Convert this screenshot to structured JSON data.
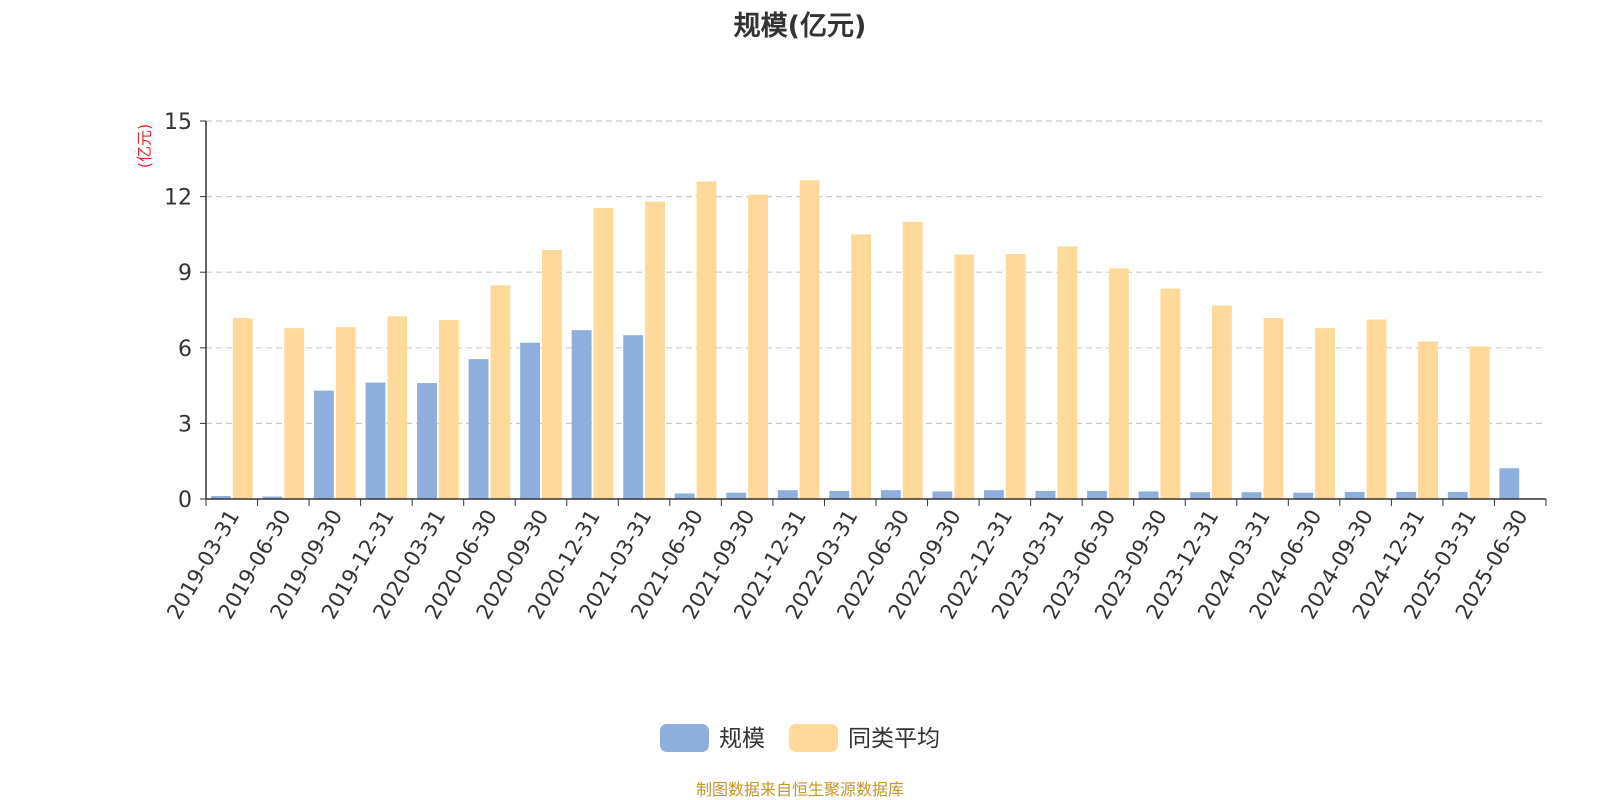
{
  "chart_data": {
    "type": "bar",
    "title": "规模(亿元)",
    "ylabel": "(亿元)",
    "ylim": [
      0,
      15
    ],
    "yticks": [
      "0",
      "3",
      "6",
      "9",
      "12",
      "15"
    ],
    "grid": true,
    "legend_position": "bottom",
    "categories": [
      "2019-03-31",
      "2019-06-30",
      "2019-09-30",
      "2019-12-31",
      "2020-03-31",
      "2020-06-30",
      "2020-09-30",
      "2020-12-31",
      "2021-03-31",
      "2021-06-30",
      "2021-09-30",
      "2021-12-31",
      "2022-03-31",
      "2022-06-30",
      "2022-09-30",
      "2022-12-31",
      "2023-03-31",
      "2023-06-30",
      "2023-09-30",
      "2023-12-31",
      "2024-03-31",
      "2024-06-30",
      "2024-09-30",
      "2024-12-31",
      "2025-03-31",
      "2025-06-30"
    ],
    "series": [
      {
        "name": "规模",
        "color": "#8eaedc",
        "values": [
          0.12,
          0.1,
          4.3,
          4.62,
          4.6,
          5.55,
          6.2,
          6.7,
          6.5,
          0.22,
          0.25,
          0.35,
          0.32,
          0.35,
          0.3,
          0.35,
          0.32,
          0.32,
          0.3,
          0.27,
          0.27,
          0.25,
          0.28,
          0.28,
          0.28,
          1.22
        ]
      },
      {
        "name": "同类平均",
        "color": "#fed999",
        "values": [
          7.18,
          6.78,
          6.82,
          7.25,
          7.1,
          8.48,
          9.88,
          11.55,
          11.8,
          12.6,
          12.08,
          12.65,
          10.5,
          11.0,
          9.7,
          9.72,
          10.02,
          9.15,
          8.35,
          7.68,
          7.18,
          6.78,
          7.12,
          6.25,
          6.05,
          null
        ]
      }
    ]
  },
  "source_note": "制图数据来自恒生聚源数据库"
}
